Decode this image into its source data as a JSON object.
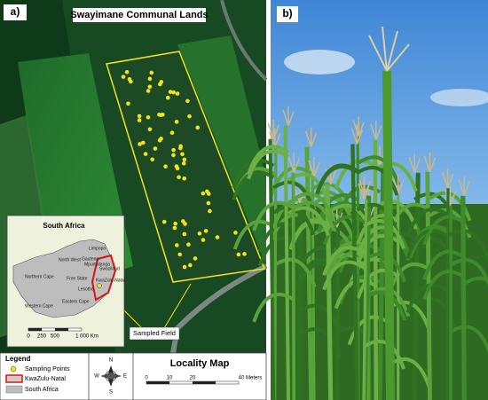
{
  "panel_a": {
    "label": "a)",
    "title": "Swayimane Communal Lands",
    "inset": {
      "title": "South Africa",
      "provinces": [
        "Limpopo",
        "North West",
        "Gauteng",
        "Mpumalanga",
        "Swaziland",
        "Northern Cape",
        "Free State",
        "Lesotho",
        "KwaZulu-Natal",
        "Eastern Cape",
        "Western Cape"
      ],
      "scale": [
        "0",
        "250",
        "500",
        "1 000 Km"
      ]
    },
    "callout": "Sampled Field",
    "legend": {
      "title": "Legend",
      "items": [
        "Sampling Points",
        "KwaZulu-Natal",
        "South Africa"
      ]
    },
    "north": [
      "N",
      "S",
      "E",
      "W"
    ],
    "map_title": "Locality Map",
    "scale": [
      "0",
      "10",
      "20",
      "40 Meters"
    ]
  },
  "panel_b": {
    "label": "b)"
  }
}
